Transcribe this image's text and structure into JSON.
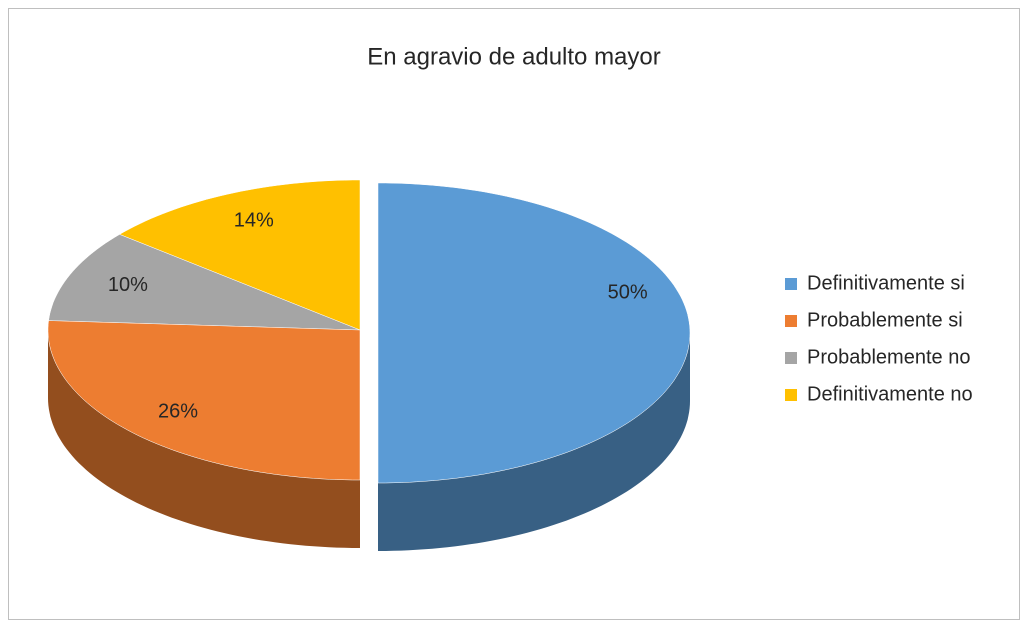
{
  "chart_data": {
    "type": "pie",
    "title": "En agravio de adulto mayor",
    "categories": [
      "Definitivamente si",
      "Probablemente si",
      "Probablemente no",
      "Definitivamente no"
    ],
    "values": [
      50,
      26,
      10,
      14
    ],
    "value_labels": [
      "50%",
      "26%",
      "10%",
      "14%"
    ],
    "colors": [
      "#5b9bd5",
      "#ed7d31",
      "#a5a5a5",
      "#ffc000"
    ],
    "legend": "right"
  }
}
